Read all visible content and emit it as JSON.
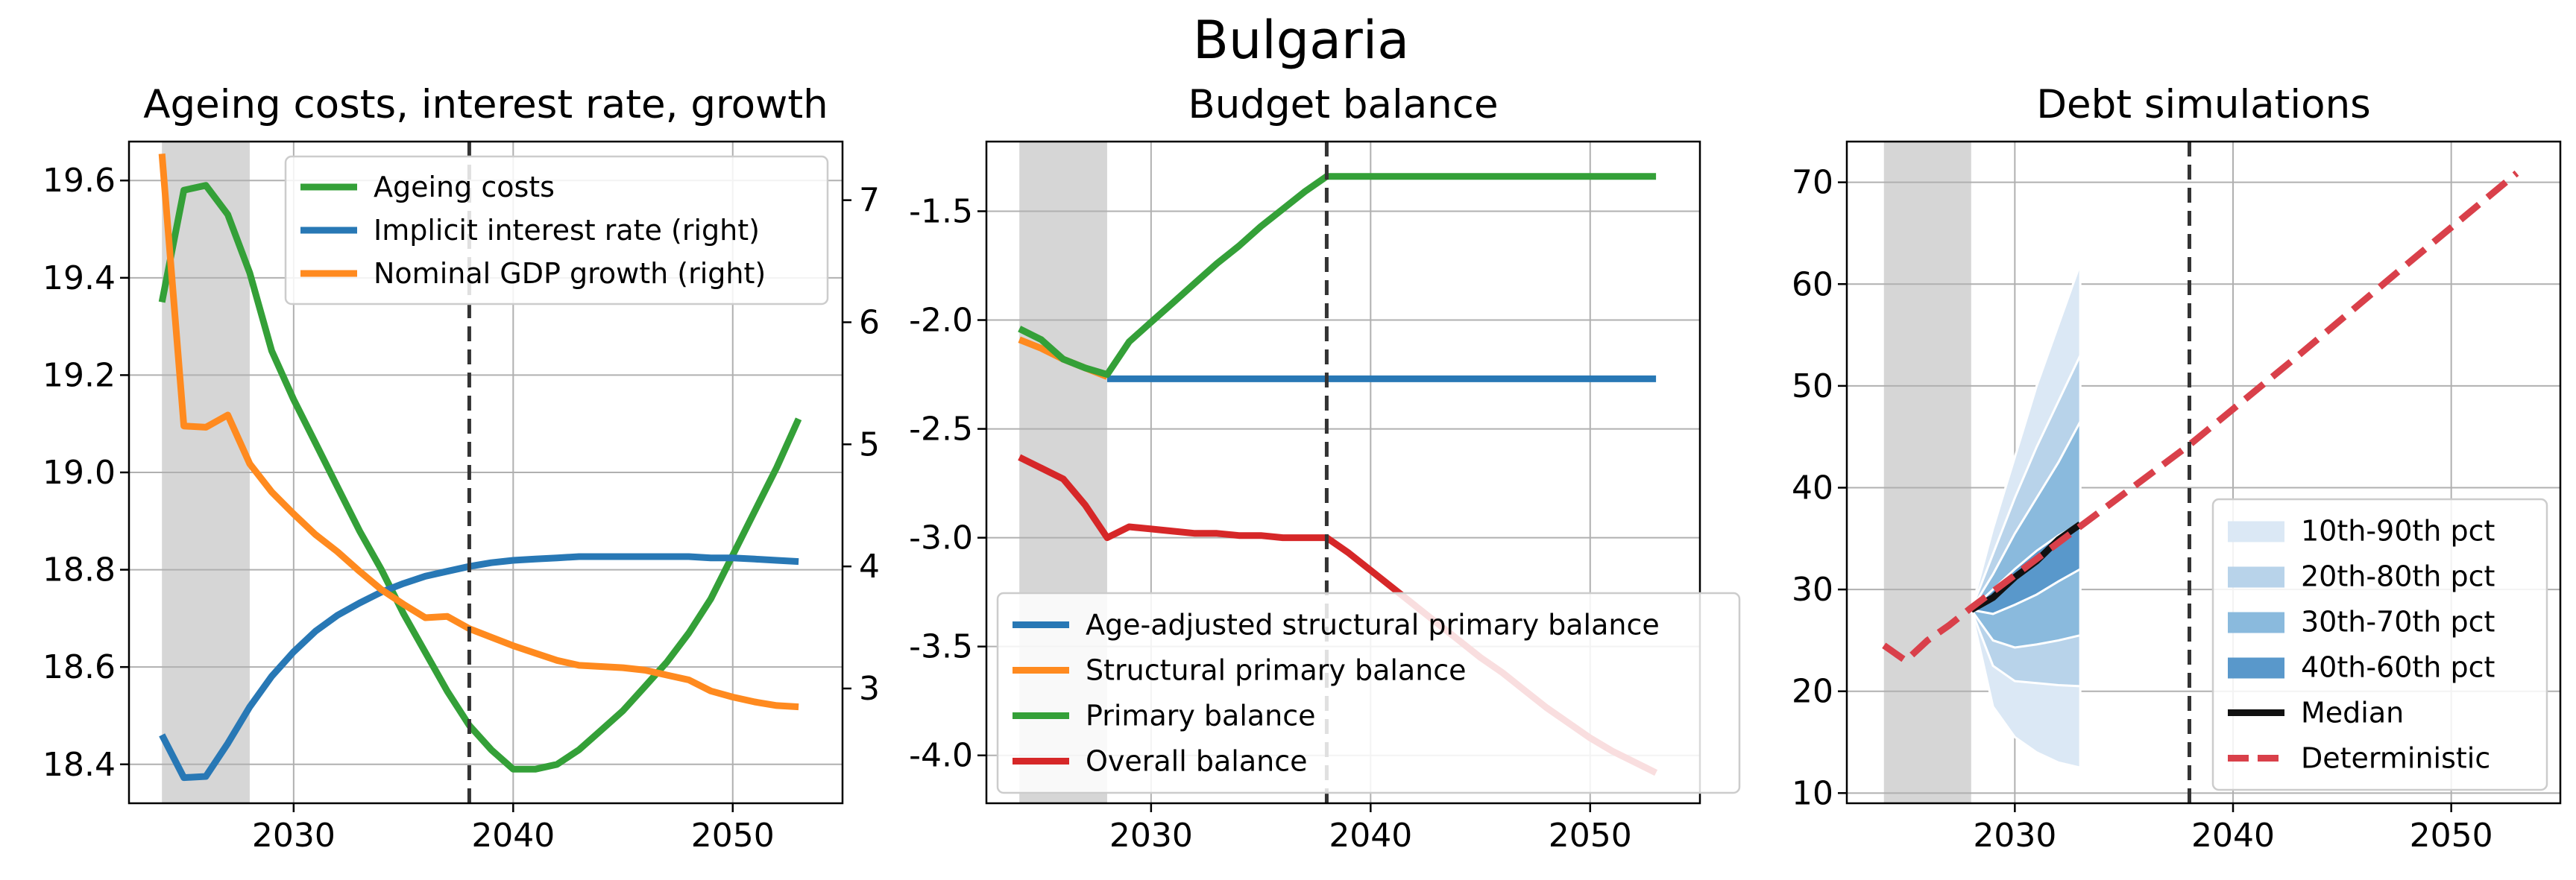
{
  "figure": {
    "title": "Bulgaria"
  },
  "colors": {
    "blue": "#2878b5",
    "orange": "#ff8a1f",
    "green": "#34a038",
    "red": "#d62728",
    "fan": [
      "#dbe8f5",
      "#b8d3ea",
      "#8abadd",
      "#5998cb"
    ],
    "median": "#111111",
    "deterministic": "#d9404a"
  },
  "chart_data": [
    {
      "type": "line",
      "title": "Ageing costs, interest rate, growth",
      "xlim": [
        2022.5,
        2055
      ],
      "ylim": [
        18.32,
        19.68
      ],
      "ylim_right": [
        2.06,
        7.48
      ],
      "xticks": [
        2030,
        2040,
        2050
      ],
      "yticks": [
        18.4,
        18.6,
        18.8,
        19.0,
        19.2,
        19.4,
        19.6
      ],
      "ytick_labels": [
        "18.4",
        "18.6",
        "18.8",
        "19.0",
        "19.2",
        "19.4",
        "19.6"
      ],
      "yticks_right": [
        3,
        4,
        5,
        6,
        7
      ],
      "shaded_region": [
        2024,
        2028
      ],
      "vline": 2038,
      "grid": true,
      "legend_position": "upper right",
      "series": [
        {
          "name": "Ageing costs",
          "color": "green",
          "axis": "left",
          "x": [
            2024,
            2025,
            2026,
            2027,
            2028,
            2029,
            2030,
            2031,
            2032,
            2033,
            2034,
            2035,
            2036,
            2037,
            2038,
            2039,
            2040,
            2041,
            2042,
            2043,
            2044,
            2045,
            2046,
            2047,
            2048,
            2049,
            2050,
            2051,
            2052,
            2053
          ],
          "y": [
            19.35,
            19.58,
            19.59,
            19.53,
            19.41,
            19.25,
            19.15,
            19.06,
            18.97,
            18.88,
            18.8,
            18.71,
            18.63,
            18.55,
            18.48,
            18.43,
            18.39,
            18.39,
            18.4,
            18.43,
            18.47,
            18.51,
            18.56,
            18.61,
            18.67,
            18.74,
            18.83,
            18.92,
            19.01,
            19.11
          ]
        },
        {
          "name": "Implicit interest rate (right)",
          "color": "blue",
          "axis": "right",
          "x": [
            2024,
            2025,
            2026,
            2027,
            2028,
            2029,
            2030,
            2031,
            2032,
            2033,
            2034,
            2035,
            2036,
            2037,
            2038,
            2039,
            2040,
            2041,
            2042,
            2043,
            2044,
            2045,
            2046,
            2047,
            2048,
            2049,
            2050,
            2051,
            2052,
            2053
          ],
          "y": [
            2.62,
            2.27,
            2.28,
            2.55,
            2.85,
            3.1,
            3.3,
            3.47,
            3.6,
            3.7,
            3.79,
            3.86,
            3.92,
            3.96,
            4.0,
            4.03,
            4.05,
            4.06,
            4.07,
            4.08,
            4.08,
            4.08,
            4.08,
            4.08,
            4.08,
            4.07,
            4.07,
            4.06,
            4.05,
            4.04
          ]
        },
        {
          "name": "Nominal GDP growth (right)",
          "color": "orange",
          "axis": "right",
          "x": [
            2024,
            2025,
            2026,
            2027,
            2028,
            2029,
            2030,
            2031,
            2032,
            2033,
            2034,
            2035,
            2036,
            2037,
            2038,
            2039,
            2040,
            2041,
            2042,
            2043,
            2044,
            2045,
            2046,
            2047,
            2048,
            2049,
            2050,
            2051,
            2052,
            2053
          ],
          "y": [
            7.38,
            5.15,
            5.14,
            5.24,
            4.84,
            4.61,
            4.43,
            4.26,
            4.12,
            3.96,
            3.81,
            3.69,
            3.58,
            3.59,
            3.49,
            3.42,
            3.35,
            3.29,
            3.23,
            3.19,
            3.18,
            3.17,
            3.15,
            3.11,
            3.07,
            2.98,
            2.93,
            2.89,
            2.86,
            2.85
          ]
        }
      ]
    },
    {
      "type": "line",
      "title": "Budget balance",
      "xlim": [
        2022.5,
        2055
      ],
      "ylim": [
        -4.22,
        -1.18
      ],
      "xticks": [
        2030,
        2040,
        2050
      ],
      "yticks": [
        -4.0,
        -3.5,
        -3.0,
        -2.5,
        -2.0,
        -1.5
      ],
      "ytick_labels": [
        "-4.0",
        "-3.5",
        "-3.0",
        "-2.5",
        "-2.0",
        "-1.5"
      ],
      "shaded_region": [
        2024,
        2028
      ],
      "vline": 2038,
      "grid": true,
      "legend_position": "lower left",
      "series": [
        {
          "name": "Age-adjusted structural primary balance",
          "color": "blue",
          "x": [
            2028,
            2029,
            2053
          ],
          "y": [
            -2.27,
            -2.27,
            -2.27
          ]
        },
        {
          "name": "Structural primary balance",
          "color": "orange",
          "x": [
            2024,
            2025,
            2026,
            2027,
            2028
          ],
          "y": [
            -2.09,
            -2.13,
            -2.18,
            -2.22,
            -2.26
          ]
        },
        {
          "name": "Primary balance",
          "color": "green",
          "x": [
            2024,
            2025,
            2026,
            2027,
            2028,
            2029,
            2030,
            2031,
            2032,
            2033,
            2034,
            2035,
            2036,
            2037,
            2038,
            2053
          ],
          "y": [
            -2.04,
            -2.09,
            -2.18,
            -2.22,
            -2.25,
            -2.1,
            -2.01,
            -1.92,
            -1.83,
            -1.74,
            -1.66,
            -1.57,
            -1.49,
            -1.41,
            -1.34,
            -1.34
          ]
        },
        {
          "name": "Overall balance",
          "color": "red",
          "x": [
            2024,
            2025,
            2026,
            2027,
            2028,
            2029,
            2030,
            2031,
            2032,
            2033,
            2034,
            2035,
            2036,
            2037,
            2038,
            2039,
            2040,
            2041,
            2042,
            2043,
            2044,
            2045,
            2046,
            2047,
            2048,
            2049,
            2050,
            2051,
            2052,
            2053
          ],
          "y": [
            -2.63,
            -2.68,
            -2.73,
            -2.85,
            -3.0,
            -2.95,
            -2.96,
            -2.97,
            -2.98,
            -2.98,
            -2.99,
            -2.99,
            -3.0,
            -3.0,
            -3.0,
            -3.07,
            -3.15,
            -3.23,
            -3.31,
            -3.39,
            -3.47,
            -3.55,
            -3.62,
            -3.7,
            -3.78,
            -3.85,
            -3.92,
            -3.98,
            -4.03,
            -4.08
          ]
        }
      ]
    },
    {
      "type": "area",
      "title": "Debt simulations",
      "xlim": [
        2022.3,
        2055
      ],
      "ylim": [
        9,
        74
      ],
      "xticks": [
        2030,
        2040,
        2050
      ],
      "yticks": [
        10,
        20,
        30,
        40,
        50,
        60,
        70
      ],
      "ytick_labels": [
        "10",
        "20",
        "30",
        "40",
        "50",
        "60",
        "70"
      ],
      "shaded_region": [
        2024,
        2028
      ],
      "vline": 2038,
      "grid": true,
      "legend_position": "lower right",
      "fan_x": [
        2028,
        2029,
        2030,
        2031,
        2032,
        2033
      ],
      "bands": [
        {
          "name": "10th-90th pct",
          "lower": [
            28.0,
            18.5,
            15.5,
            14.0,
            13.0,
            12.5
          ],
          "upper": [
            28.0,
            36.0,
            43.0,
            50.0,
            56.0,
            62.0
          ]
        },
        {
          "name": "20th-80th pct",
          "lower": [
            28.0,
            22.5,
            21.0,
            20.8,
            20.6,
            20.5
          ],
          "upper": [
            28.0,
            33.5,
            39.0,
            44.0,
            48.5,
            53.0
          ]
        },
        {
          "name": "30th-70th pct",
          "lower": [
            28.0,
            25.0,
            24.3,
            24.6,
            25.0,
            25.5
          ],
          "upper": [
            28.0,
            31.5,
            35.5,
            39.0,
            42.5,
            46.5
          ]
        },
        {
          "name": "40th-60th pct",
          "lower": [
            28.0,
            27.6,
            28.5,
            29.5,
            30.8,
            32.0
          ],
          "upper": [
            28.0,
            30.0,
            32.0,
            33.8,
            35.3,
            36.5
          ]
        }
      ],
      "series": [
        {
          "name": "Median",
          "color": "median",
          "style": "solid",
          "x": [
            2028,
            2029,
            2030,
            2031,
            2032,
            2033
          ],
          "y": [
            28.0,
            29.2,
            31.2,
            32.8,
            34.9,
            36.4
          ]
        },
        {
          "name": "Deterministic",
          "color": "deterministic",
          "style": "dashed",
          "x": [
            2024,
            2025,
            2026,
            2027,
            2028,
            2033,
            2038,
            2043,
            2048,
            2053
          ],
          "y": [
            24.5,
            23.0,
            25.0,
            26.5,
            28.2,
            36.2,
            44.2,
            53.0,
            62.0,
            70.9
          ]
        }
      ]
    }
  ]
}
